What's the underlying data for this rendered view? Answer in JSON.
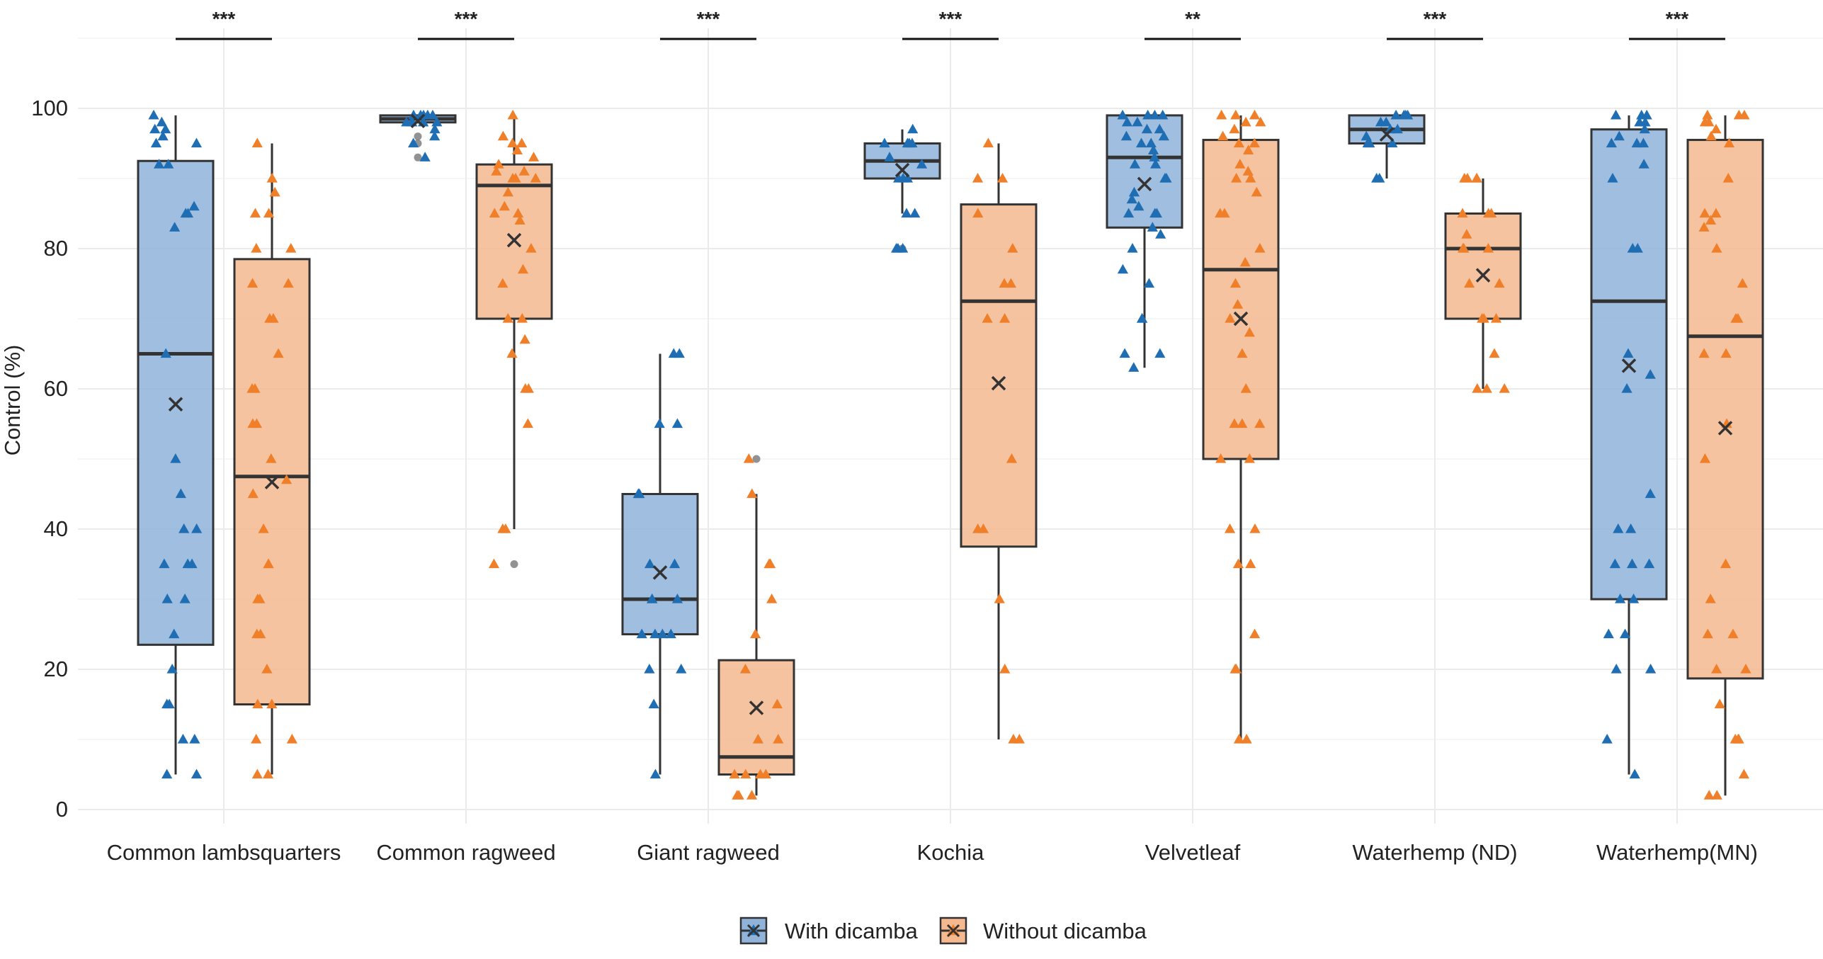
{
  "chart_data": {
    "type": "box",
    "title": "",
    "xlabel": "",
    "ylabel": "Control (%)",
    "ylim": [
      -2,
      110
    ],
    "yticks": [
      0,
      20,
      40,
      60,
      80,
      100
    ],
    "ytick_labels": [
      "0",
      "20",
      "40",
      "60",
      "80",
      "100"
    ],
    "grid": true,
    "legend_position": "bottom",
    "categories": [
      "Common lambsquarters",
      "Common ragweed",
      "Giant ragweed",
      "Kochia",
      "Velvetleaf",
      "Waterhemp (ND)",
      "Waterhemp(MN)"
    ],
    "significance": [
      "***",
      "***",
      "***",
      "***",
      "**",
      "***",
      "***"
    ],
    "series": [
      {
        "name": "With dicamba",
        "color": "#1f6eb4",
        "fill": "#8fb3d9",
        "boxes": [
          {
            "q1": 23.5,
            "median": 65,
            "q3": 92.5,
            "whisker_low": 5,
            "whisker_high": 99,
            "mean": 57.8,
            "outliers": [],
            "points": [
              99,
              98,
              97,
              97,
              96,
              95,
              95,
              92,
              92,
              86,
              85,
              85,
              83,
              65,
              50,
              45,
              40,
              40,
              35,
              35,
              35,
              30,
              30,
              25,
              20,
              15,
              15,
              10,
              10,
              5,
              5
            ]
          },
          {
            "q1": 98,
            "median": 98.5,
            "q3": 99,
            "whisker_low": 98,
            "whisker_high": 99,
            "mean": 98.2,
            "outliers": [
              96,
              95,
              93
            ],
            "points": [
              99,
              99,
              99,
              99,
              99,
              98,
              98,
              98,
              98,
              98,
              97,
              96,
              95,
              93
            ]
          },
          {
            "q1": 25,
            "median": 30,
            "q3": 45,
            "whisker_low": 5,
            "whisker_high": 65,
            "mean": 33.8,
            "outliers": [],
            "points": [
              65,
              65,
              55,
              55,
              45,
              45,
              35,
              35,
              30,
              30,
              30,
              25,
              25,
              25,
              25,
              20,
              20,
              15,
              5
            ]
          },
          {
            "q1": 90,
            "median": 92.5,
            "q3": 95,
            "whisker_low": 85,
            "whisker_high": 97,
            "mean": 91.2,
            "outliers": [
              80
            ],
            "points": [
              97,
              95,
              95,
              95,
              95,
              93,
              92,
              90,
              90,
              90,
              85,
              85,
              80,
              80,
              80
            ]
          },
          {
            "q1": 83,
            "median": 93,
            "q3": 99,
            "whisker_low": 63,
            "whisker_high": 99,
            "mean": 89.2,
            "outliers": [],
            "points": [
              99,
              99,
              99,
              99,
              98,
              98,
              97,
              97,
              96,
              96,
              95,
              95,
              94,
              93,
              92,
              92,
              90,
              90,
              88,
              87,
              86,
              85,
              85,
              85,
              83,
              82,
              80,
              77,
              75,
              70,
              70,
              65,
              65,
              63
            ]
          },
          {
            "q1": 95,
            "median": 97,
            "q3": 99,
            "whisker_low": 90,
            "whisker_high": 99,
            "mean": 96.3,
            "outliers": [],
            "points": [
              99,
              99,
              99,
              99,
              98,
              98,
              97,
              97,
              96,
              95,
              95,
              95,
              90,
              90
            ]
          },
          {
            "q1": 30,
            "median": 72.5,
            "q3": 97,
            "whisker_low": 5,
            "whisker_high": 99,
            "mean": 63.3,
            "outliers": [],
            "points": [
              99,
              99,
              99,
              98,
              98,
              97,
              96,
              95,
              95,
              95,
              92,
              90,
              80,
              80,
              65,
              62,
              60,
              45,
              40,
              40,
              35,
              35,
              35,
              30,
              30,
              25,
              25,
              20,
              20,
              10,
              5
            ]
          }
        ]
      },
      {
        "name": "Without dicamba",
        "color": "#f07f2a",
        "fill": "#f5b88f",
        "boxes": [
          {
            "q1": 15,
            "median": 47.5,
            "q3": 78.5,
            "whisker_low": 5,
            "whisker_high": 95,
            "mean": 46.7,
            "outliers": [],
            "points": [
              95,
              90,
              88,
              85,
              85,
              80,
              80,
              75,
              75,
              70,
              70,
              65,
              60,
              60,
              55,
              55,
              50,
              47,
              45,
              40,
              35,
              35,
              30,
              30,
              25,
              25,
              20,
              15,
              15,
              10,
              10,
              5,
              5
            ]
          },
          {
            "q1": 70,
            "median": 89,
            "q3": 92,
            "whisker_low": 40,
            "whisker_high": 99,
            "mean": 81.2,
            "outliers": [
              35
            ],
            "points": [
              99,
              96,
              95,
              95,
              94,
              93,
              92,
              91,
              91,
              90,
              90,
              90,
              88,
              86,
              85,
              85,
              84,
              80,
              77,
              75,
              70,
              70,
              67,
              65,
              60,
              60,
              55,
              40,
              40,
              35
            ]
          },
          {
            "q1": 5,
            "median": 7.5,
            "q3": 21.3,
            "whisker_low": 2,
            "whisker_high": 45,
            "mean": 14.5,
            "outliers": [
              50
            ],
            "points": [
              50,
              45,
              35,
              35,
              30,
              25,
              20,
              15,
              10,
              10,
              5,
              5,
              5,
              5,
              2,
              2,
              2
            ]
          },
          {
            "q1": 37.5,
            "median": 72.5,
            "q3": 86.3,
            "whisker_low": 10,
            "whisker_high": 95,
            "mean": 60.8,
            "outliers": [],
            "points": [
              95,
              90,
              90,
              85,
              80,
              75,
              75,
              70,
              70,
              50,
              40,
              40,
              30,
              20,
              10,
              10
            ]
          },
          {
            "q1": 50,
            "median": 77,
            "q3": 95.5,
            "whisker_low": 10,
            "whisker_high": 99,
            "mean": 70,
            "outliers": [],
            "points": [
              99,
              99,
              99,
              98,
              98,
              97,
              96,
              95,
              95,
              94,
              92,
              91,
              90,
              90,
              88,
              85,
              85,
              80,
              78,
              75,
              72,
              70,
              68,
              65,
              60,
              55,
              55,
              55,
              50,
              50,
              40,
              40,
              35,
              35,
              25,
              20,
              20,
              10,
              10
            ]
          },
          {
            "q1": 70,
            "median": 80,
            "q3": 85,
            "whisker_low": 60,
            "whisker_high": 90,
            "mean": 76.2,
            "outliers": [],
            "points": [
              90,
              90,
              90,
              90,
              85,
              85,
              85,
              82,
              80,
              80,
              80,
              75,
              75,
              70,
              70,
              70,
              65,
              60,
              60,
              60
            ]
          },
          {
            "q1": 18.7,
            "median": 67.5,
            "q3": 95.5,
            "whisker_low": 2,
            "whisker_high": 99,
            "mean": 54.4,
            "outliers": [],
            "points": [
              99,
              99,
              99,
              98,
              98,
              97,
              96,
              95,
              90,
              85,
              85,
              84,
              83,
              80,
              75,
              70,
              70,
              65,
              65,
              55,
              50,
              35,
              30,
              25,
              25,
              20,
              20,
              15,
              10,
              10,
              10,
              5,
              2,
              2
            ]
          }
        ]
      }
    ]
  }
}
